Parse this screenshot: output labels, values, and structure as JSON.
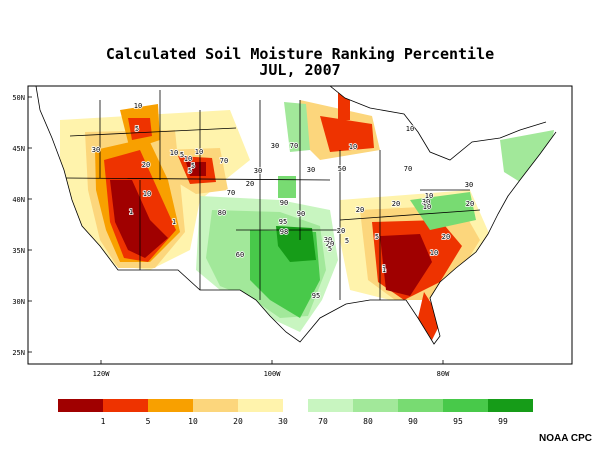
{
  "title": {
    "line1": "Calculated Soil Moisture Ranking Percentile",
    "line2": "JUL, 2007"
  },
  "axes": {
    "lat_labels": [
      "50N",
      "45N",
      "40N",
      "35N",
      "30N",
      "25N"
    ],
    "lon_labels": [
      "120W",
      "100W",
      "80W"
    ]
  },
  "contour_labels": [
    "10",
    "5",
    "30",
    "20",
    "10",
    "5",
    "1",
    "1",
    "10",
    "5",
    "70",
    "70",
    "30",
    "20",
    "70",
    "30",
    "10",
    "50",
    "70",
    "10",
    "20",
    "80",
    "90",
    "90",
    "60",
    "95",
    "98",
    "30",
    "20",
    "95",
    "10",
    "10",
    "1",
    "30",
    "20",
    "30",
    "20",
    "10",
    "20",
    "20",
    "5",
    "1",
    "5",
    "5",
    "30",
    "10",
    "10",
    "5"
  ],
  "legend": {
    "dry_colors": [
      "#a00000",
      "#ee3300",
      "#f8a000",
      "#fcd67c",
      "#fff3ac"
    ],
    "wet_colors": [
      "#c8f5c0",
      "#a2e89a",
      "#78db72",
      "#48c94a",
      "#169c18"
    ],
    "dry_labels": [
      "1",
      "5",
      "10",
      "20",
      "30"
    ],
    "wet_labels": [
      "70",
      "80",
      "90",
      "95",
      "99"
    ]
  },
  "credit": "NOAA CPC"
}
